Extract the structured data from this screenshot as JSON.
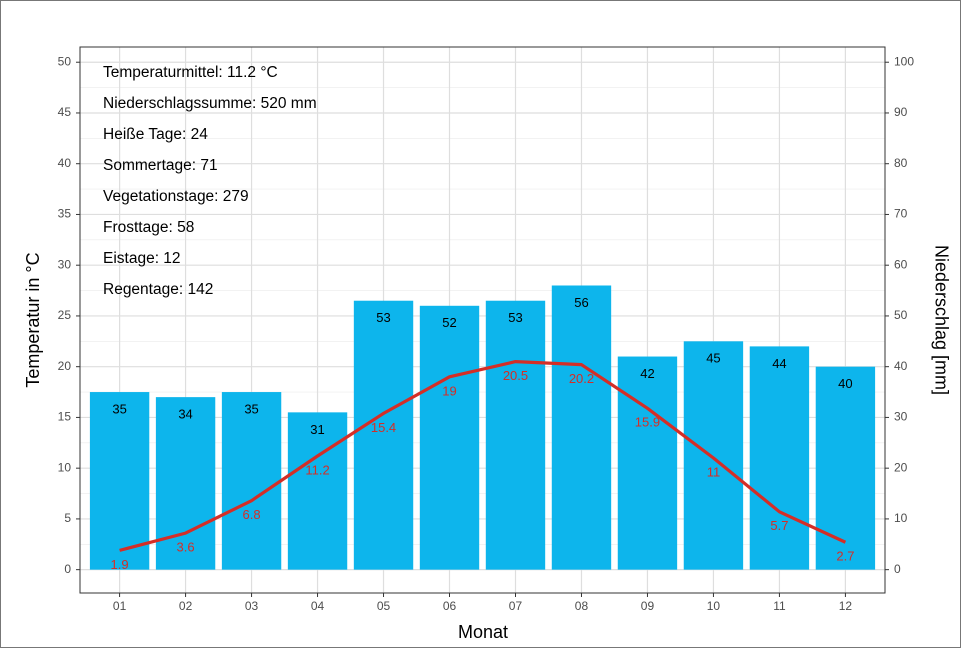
{
  "chart_data": {
    "type": "combo",
    "x_label": "Monat",
    "y_label": "Temperatur in °C",
    "y2_label": "Niederschlag [mm]",
    "annotations": [
      "Temperaturmittel: 11.2 °C",
      "Niederschlagssumme: 520 mm",
      "Heiße Tage: 24",
      "Sommertage: 71",
      "Vegetationstage: 279",
      "Frosttage: 58",
      "Eistage: 12",
      "Regentage: 142"
    ],
    "categories": [
      "01",
      "02",
      "03",
      "04",
      "05",
      "06",
      "07",
      "08",
      "09",
      "10",
      "11",
      "12"
    ],
    "series": [
      {
        "type": "bar",
        "axis": "y2",
        "color": "#0DB5EC",
        "label_color": "#000000",
        "values": [
          35,
          34,
          35,
          31,
          53,
          52,
          53,
          56,
          42,
          45,
          44,
          40
        ]
      },
      {
        "type": "line",
        "axis": "y",
        "color": "#D42E27",
        "label_color": "#D42E27",
        "values": [
          1.9,
          3.6,
          6.8,
          11.2,
          15.4,
          19,
          20.5,
          20.2,
          15.9,
          11,
          5.7,
          2.7
        ]
      }
    ],
    "ylim": [
      -2.3,
      51.5
    ],
    "yticks": [
      0,
      5,
      10,
      15,
      20,
      25,
      30,
      35,
      40,
      45,
      50
    ],
    "y2lim": [
      -4.6,
      103
    ],
    "y2ticks": [
      0,
      10,
      20,
      30,
      40,
      50,
      60,
      70,
      80,
      90,
      100
    ],
    "grid": true
  }
}
